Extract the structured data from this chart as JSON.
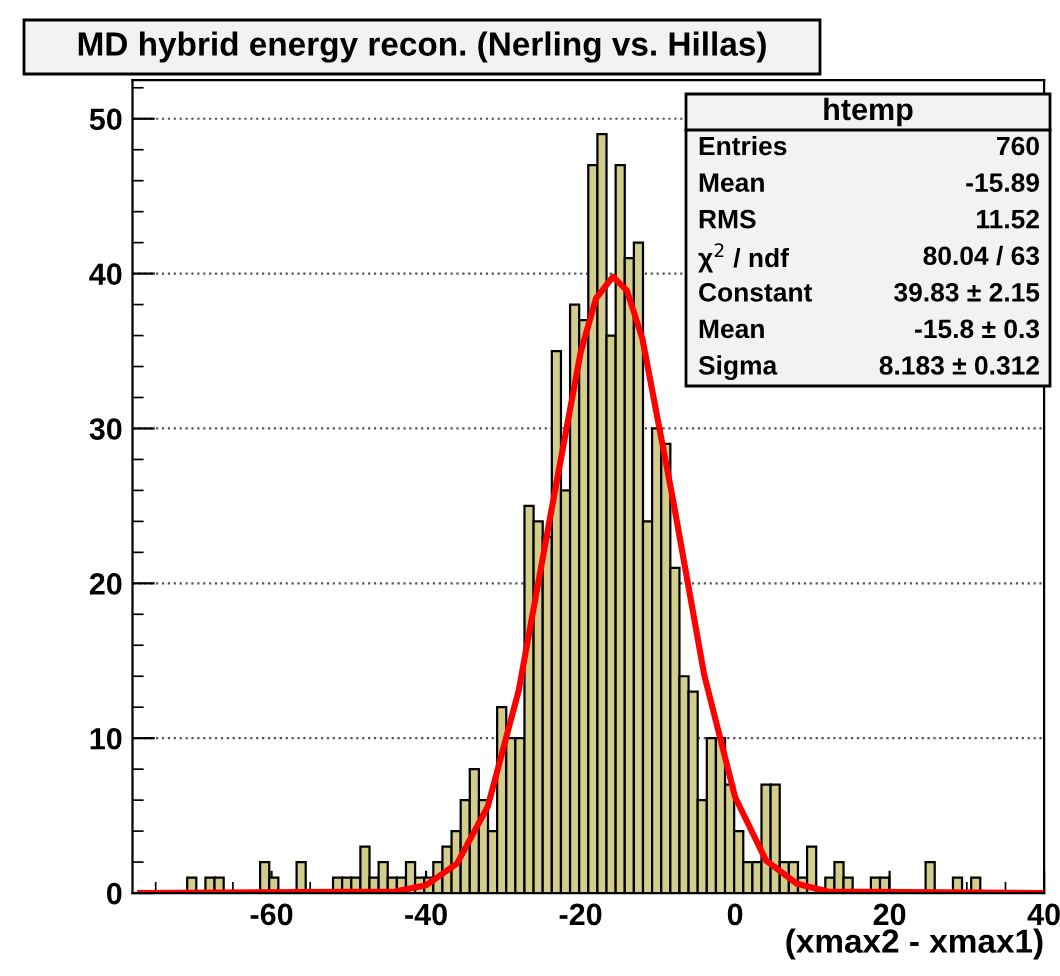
{
  "chart_data": {
    "type": "histogram",
    "title": "MD hybrid energy recon. (Nerling vs. Hillas)",
    "xlabel": "(xmax2 - xmax1)",
    "bins": [
      -78.0,
      -76.82,
      -75.64,
      -74.46,
      -73.28,
      -72.1,
      -70.92,
      -69.74,
      -68.56,
      -67.38,
      -66.2,
      -65.02,
      -63.84,
      -62.66,
      -61.48,
      -60.3,
      -59.12,
      -57.94,
      -56.76,
      -55.58,
      -54.4,
      -53.22,
      -52.04,
      -50.86,
      -49.68,
      -48.5,
      -47.32,
      -46.14,
      -44.96,
      -43.78,
      -42.6,
      -41.42,
      -40.24,
      -39.06,
      -37.88,
      -36.7,
      -35.52,
      -34.34,
      -33.16,
      -31.98,
      -30.8,
      -29.62,
      -28.44,
      -27.26,
      -26.08,
      -24.9,
      -23.72,
      -22.54,
      -21.36,
      -20.18,
      -19.0,
      -17.82,
      -16.64,
      -15.46,
      -14.28,
      -13.1,
      -11.92,
      -10.74,
      -9.56,
      -8.38,
      -7.2,
      -6.02,
      -4.84,
      -3.66,
      -2.48,
      -1.3,
      -0.12,
      1.06,
      2.24,
      3.42,
      4.6,
      5.78,
      6.96,
      8.14,
      9.32,
      10.5,
      11.68,
      12.86,
      14.04,
      15.22,
      16.4,
      17.58,
      18.76,
      19.94,
      21.12,
      22.3,
      23.48,
      24.66,
      25.84,
      27.02,
      28.2,
      29.38,
      30.56,
      31.74,
      32.92,
      34.1,
      35.28,
      36.46,
      37.64,
      38.82,
      40.0
    ],
    "values": [
      0,
      0,
      0,
      0,
      0,
      0,
      1,
      0,
      1,
      1,
      0,
      0,
      0,
      0,
      2,
      1,
      0,
      0,
      2,
      0,
      0,
      0,
      1,
      1,
      1,
      3,
      1,
      2,
      1,
      1,
      2,
      1,
      1,
      2,
      3,
      4,
      6,
      8,
      6,
      4,
      12,
      10,
      10,
      25,
      24,
      23,
      35,
      26,
      38,
      37,
      47,
      49,
      36,
      47,
      41,
      42,
      24,
      30,
      29,
      21,
      14,
      13,
      6,
      10,
      10,
      7,
      4,
      2,
      2,
      7,
      7,
      2,
      2,
      1,
      3,
      0,
      1,
      2,
      1,
      0,
      0,
      1,
      1,
      0,
      0,
      0,
      0,
      2,
      0,
      0,
      1,
      0,
      1,
      0,
      0,
      0,
      0,
      0,
      0,
      0
    ],
    "color": "#d3cd8b",
    "series": [
      {
        "type": "line",
        "color": "#ff0000",
        "x": [
          -77,
          -44,
          -40,
          -36,
          -32,
          -28,
          -24,
          -20,
          -18,
          -15.8,
          -14,
          -12,
          -8,
          -4,
          0,
          4,
          8,
          12,
          40
        ],
        "values": [
          0,
          0.1,
          0.5,
          1.9,
          5.6,
          13.1,
          24.1,
          34.9,
          38.4,
          39.8,
          38.9,
          35.8,
          25.3,
          14.1,
          6.2,
          2.1,
          0.6,
          0.1,
          0
        ]
      }
    ],
    "xlim": [
      -78,
      40
    ],
    "ylim": [
      0,
      52.5
    ],
    "xticks": [
      -60,
      -40,
      -20,
      0,
      20,
      40
    ],
    "yticks": [
      0,
      10,
      20,
      30,
      40,
      50
    ],
    "grid": "y",
    "legend": false,
    "annotations": [
      "htemp",
      "Entries",
      "760",
      "Mean",
      "-15.89",
      "RMS",
      "11.52",
      "χ$^{2}$ / ndf",
      "80.04 / 63",
      "Constant",
      "39.83 ± 2.15",
      "Mean",
      "-15.8 ± 0.3",
      "Sigma",
      "8.183 ± 0.312"
    ]
  }
}
